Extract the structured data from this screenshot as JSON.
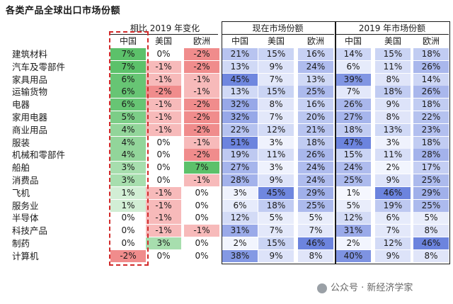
{
  "title": "各类产品全球出口市场份额",
  "watermark": "公众号 · 新经济学家",
  "chart_data": {
    "type": "table",
    "column_groups": [
      {
        "label": "相比 2019 年变化",
        "columns": [
          "中国",
          "美国",
          "欧洲"
        ]
      },
      {
        "label": "现在市场份额",
        "columns": [
          "中国",
          "美国",
          "欧洲"
        ]
      },
      {
        "label": "2019 年市场份额",
        "columns": [
          "中国",
          "美国",
          "欧洲"
        ]
      }
    ],
    "rows": [
      {
        "label": "建筑材料",
        "values": [
          "7%",
          "0%",
          "-2%",
          "21%",
          "15%",
          "16%",
          "14%",
          "15%",
          "18%"
        ]
      },
      {
        "label": "汽车及零部件",
        "values": [
          "7%",
          "-1%",
          "-2%",
          "13%",
          "9%",
          "24%",
          "6%",
          "11%",
          "26%"
        ]
      },
      {
        "label": "家具用品",
        "values": [
          "6%",
          "-1%",
          "-1%",
          "45%",
          "7%",
          "13%",
          "39%",
          "8%",
          "14%"
        ]
      },
      {
        "label": "运输货物",
        "values": [
          "6%",
          "-2%",
          "-1%",
          "13%",
          "15%",
          "25%",
          "7%",
          "18%",
          "26%"
        ]
      },
      {
        "label": "电器",
        "values": [
          "6%",
          "-1%",
          "-2%",
          "32%",
          "8%",
          "16%",
          "26%",
          "9%",
          "18%"
        ]
      },
      {
        "label": "家用电器",
        "values": [
          "5%",
          "-1%",
          "-2%",
          "32%",
          "7%",
          "20%",
          "27%",
          "8%",
          "22%"
        ]
      },
      {
        "label": "商业用品",
        "values": [
          "4%",
          "-1%",
          "-2%",
          "22%",
          "12%",
          "21%",
          "18%",
          "13%",
          "23%"
        ]
      },
      {
        "label": "服装",
        "values": [
          "4%",
          "0%",
          "-1%",
          "51%",
          "3%",
          "18%",
          "47%",
          "3%",
          "18%"
        ]
      },
      {
        "label": "机械和零部件",
        "values": [
          "4%",
          "0%",
          "-2%",
          "19%",
          "11%",
          "26%",
          "15%",
          "11%",
          "28%"
        ]
      },
      {
        "label": "船舶",
        "values": [
          "3%",
          "0%",
          "7%",
          "27%",
          "3%",
          "24%",
          "24%",
          "2%",
          "17%"
        ]
      },
      {
        "label": "消费品",
        "values": [
          "3%",
          "0%",
          "-1%",
          "28%",
          "9%",
          "24%",
          "25%",
          "9%",
          "25%"
        ]
      },
      {
        "label": "飞机",
        "values": [
          "1%",
          "-1%",
          "0%",
          "3%",
          "45%",
          "29%",
          "1%",
          "46%",
          "29%"
        ]
      },
      {
        "label": "服务业",
        "values": [
          "1%",
          "-1%",
          "0%",
          "6%",
          "18%",
          "25%",
          "5%",
          "19%",
          "25%"
        ]
      },
      {
        "label": "半导体",
        "values": [
          "0%",
          "-1%",
          "0%",
          "12%",
          "5%",
          "5%",
          "12%",
          "6%",
          "5%"
        ]
      },
      {
        "label": "科技产品",
        "values": [
          "0%",
          "-1%",
          "-1%",
          "31%",
          "7%",
          "7%",
          "31%",
          "7%",
          "8%"
        ]
      },
      {
        "label": "制药",
        "values": [
          "0%",
          "3%",
          "0%",
          "2%",
          "15%",
          "46%",
          "2%",
          "12%",
          "46%"
        ]
      },
      {
        "label": "计算机",
        "values": [
          "-2%",
          "0%",
          "0%",
          "38%",
          "9%",
          "8%",
          "40%",
          "9%",
          "8%"
        ]
      }
    ]
  },
  "colors": {
    "positive_change": "#5cc16a",
    "negative_change": "#ef7b7b",
    "share_high": "#6f86dd",
    "dashed_highlight": "#d12a2a"
  }
}
